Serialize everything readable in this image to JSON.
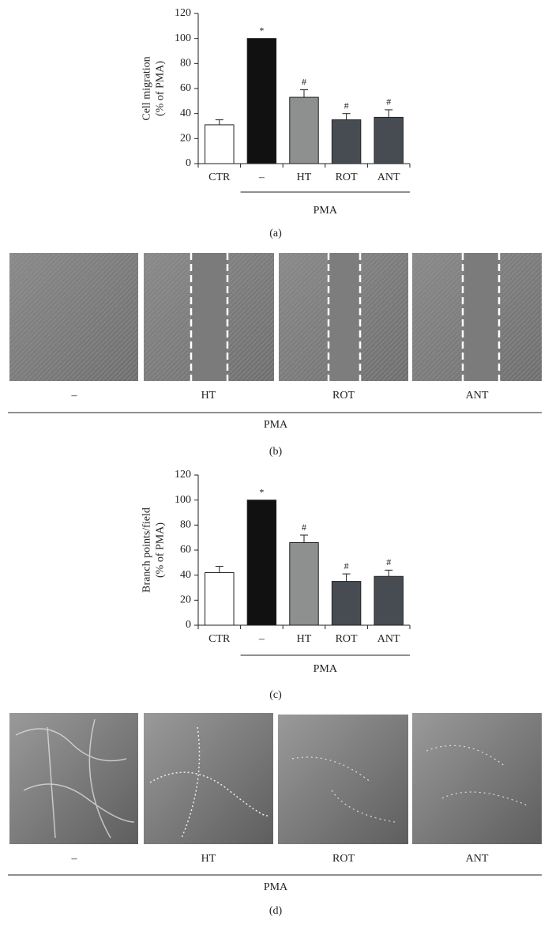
{
  "chart_data": [
    {
      "type": "bar",
      "ylabel": [
        "Cell migration",
        "(% of PMA)"
      ],
      "categories": [
        "CTR",
        "–",
        "HT",
        "ROT",
        "ANT"
      ],
      "values": [
        31,
        100,
        53,
        35,
        37
      ],
      "errors": [
        4,
        0,
        6,
        5,
        6
      ],
      "markers": [
        null,
        "*",
        "#",
        "#",
        "#"
      ],
      "colors": [
        "#ffffff",
        "#111111",
        "#8e9090",
        "#464c52",
        "#464c52"
      ],
      "ylim": [
        0,
        120
      ],
      "yticks": [
        0,
        20,
        40,
        60,
        80,
        100,
        120
      ],
      "group_label": "PMA",
      "panel_label": "(a)"
    },
    {
      "type": "bar",
      "ylabel": [
        "Branch points/field",
        "(% of PMA)"
      ],
      "categories": [
        "CTR",
        "–",
        "HT",
        "ROT",
        "ANT"
      ],
      "values": [
        42,
        100,
        66,
        35,
        39
      ],
      "errors": [
        5,
        0,
        6,
        6,
        5
      ],
      "markers": [
        null,
        "*",
        "#",
        "#",
        "#"
      ],
      "colors": [
        "#ffffff",
        "#111111",
        "#8e9090",
        "#464c52",
        "#464c52"
      ],
      "ylim": [
        0,
        120
      ],
      "yticks": [
        0,
        20,
        40,
        60,
        80,
        100,
        120
      ],
      "group_label": "PMA",
      "panel_label": "(c)"
    }
  ],
  "panel_b": {
    "labels": [
      "–",
      "HT",
      "ROT",
      "ANT"
    ],
    "group_label": "PMA",
    "panel_label": "(b)"
  },
  "panel_d": {
    "labels": [
      "–",
      "HT",
      "ROT",
      "ANT"
    ],
    "group_label": "PMA",
    "panel_label": "(d)"
  }
}
